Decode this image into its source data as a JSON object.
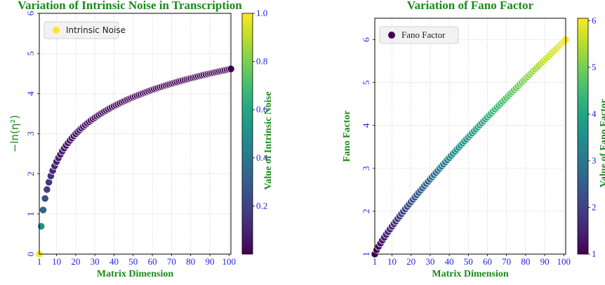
{
  "chart_data": [
    {
      "type": "scatter",
      "title": "Variation of Intrinsic Noise in Transcription",
      "xlabel": "Matrix Dimension",
      "ylabel": "−ln(η²)",
      "xlim": [
        1,
        101
      ],
      "ylim": [
        0,
        6
      ],
      "xticks": [
        1,
        10,
        20,
        30,
        40,
        50,
        60,
        70,
        80,
        90,
        100
      ],
      "yticks": [
        0,
        1,
        2,
        3,
        4,
        5,
        6
      ],
      "grid": true,
      "legend": {
        "position": "top-left",
        "label": "Intrinsic Noise"
      },
      "colorbar": {
        "label": "Value of Intrinsic Noise",
        "range": [
          0.0,
          1.0
        ],
        "ticks": [
          "0.2",
          "0.4",
          "0.6",
          "0.8",
          "1.0"
        ],
        "colormap": "viridis"
      },
      "series": [
        {
          "name": "Intrinsic Noise",
          "x_range": [
            1,
            101
          ],
          "formula": "y = ln(x); color = 1/x",
          "sample_points": [
            [
              1,
              0.0
            ],
            [
              2,
              0.69
            ],
            [
              3,
              1.1
            ],
            [
              5,
              1.61
            ],
            [
              10,
              2.3
            ],
            [
              20,
              3.0
            ],
            [
              50,
              3.91
            ],
            [
              100,
              4.61
            ]
          ]
        }
      ]
    },
    {
      "type": "scatter",
      "title": "Variation of Fano Factor",
      "xlabel": "Matrix Dimension",
      "ylabel": "Fano Factor",
      "xlim": [
        1,
        101
      ],
      "ylim": [
        1,
        6.5
      ],
      "xticks": [
        1,
        10,
        20,
        30,
        40,
        50,
        60,
        70,
        80,
        90,
        100
      ],
      "yticks": [
        1,
        2,
        3,
        4,
        5,
        6
      ],
      "grid": true,
      "legend": {
        "position": "top-left",
        "label": "Fano Factor"
      },
      "colorbar": {
        "label": "Value of Fano Factor",
        "range": [
          1,
          6.05
        ],
        "ticks": [
          "1",
          "2",
          "3",
          "4",
          "5",
          "6"
        ],
        "colormap": "viridis"
      },
      "series": [
        {
          "name": "Fano Factor",
          "x_range": [
            1,
            101
          ],
          "formula": "y = 1 + 5*((x-1)/100)^0.85; color = y",
          "sample_points": [
            [
              1,
              1.0
            ],
            [
              10,
              1.64
            ],
            [
              20,
              2.21
            ],
            [
              30,
              2.75
            ],
            [
              50,
              3.74
            ],
            [
              70,
              4.68
            ],
            [
              90,
              5.6
            ],
            [
              101,
              6.05
            ]
          ]
        }
      ]
    }
  ]
}
